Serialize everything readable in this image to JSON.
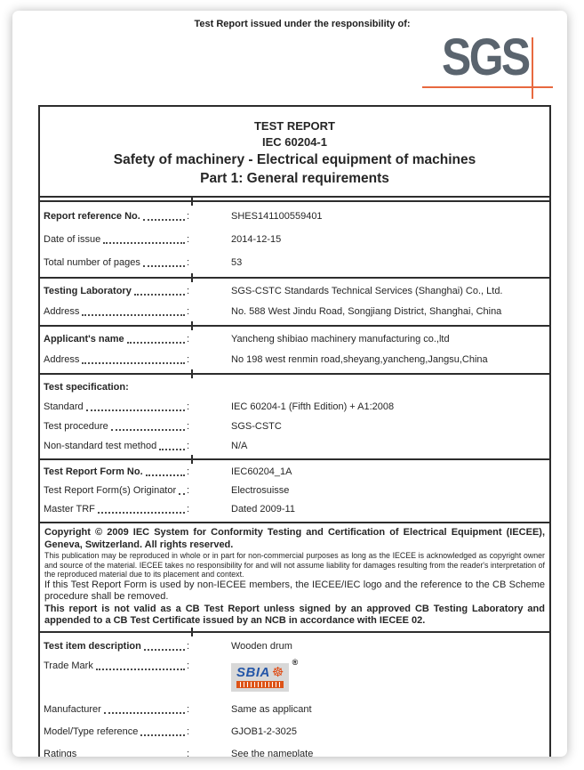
{
  "colors": {
    "accent_orange": "#e8693f",
    "sgs_gray": "#5a646e",
    "border": "#2d2d2d",
    "trademark_blue": "#2456a8",
    "trademark_orange": "#dd5317",
    "trademark_bg": "#d8d8d8"
  },
  "header": {
    "issued_text": "Test Report issued under the responsibility of:",
    "logo_text": "SGS"
  },
  "title_block": {
    "line1": "TEST REPORT",
    "line2": "IEC 60204-1",
    "line3": "Safety of machinery - Electrical equipment of machines",
    "line4": "Part 1: General requirements"
  },
  "table": {
    "colon": ":",
    "sections": [
      {
        "rows": [
          {
            "label": "Report reference No.",
            "bold": true,
            "value": "SHES141100559401"
          },
          {
            "label": "Date of issue",
            "bold": false,
            "value": "2014-12-15"
          },
          {
            "label": "Total number of pages",
            "bold": false,
            "value": "53"
          }
        ]
      },
      {
        "rows": [
          {
            "label": "Testing Laboratory",
            "bold": true,
            "value": "SGS-CSTC Standards Technical Services (Shanghai) Co., Ltd."
          },
          {
            "label": "Address",
            "bold": false,
            "value": "No. 588 West Jindu Road, Songjiang District, Shanghai, China"
          }
        ]
      },
      {
        "rows": [
          {
            "label": "Applicant's name",
            "bold": true,
            "value": "Yancheng shibiao machinery manufacturing co.,ltd"
          },
          {
            "label": "Address",
            "bold": false,
            "value": "No 198 west renmin road,sheyang,yancheng,Jangsu,China"
          }
        ]
      },
      {
        "rows": [
          {
            "label": "Test specification:",
            "bold": true,
            "no_leader": true,
            "value": ""
          },
          {
            "label": "Standard",
            "bold": false,
            "value": "IEC 60204-1 (Fifth Edition) + A1:2008"
          },
          {
            "label": "Test procedure",
            "bold": false,
            "value": "SGS-CSTC"
          },
          {
            "label": "Non-standard test method",
            "bold": false,
            "value": "N/A"
          }
        ]
      },
      {
        "rows": [
          {
            "label": "Test Report Form No.",
            "bold": true,
            "value": "IEC60204_1A"
          },
          {
            "label": "Test Report Form(s) Originator",
            "bold": false,
            "value": "Electrosuisse"
          },
          {
            "label": "Master TRF",
            "bold": false,
            "value": "Dated 2009-11"
          }
        ]
      },
      {
        "type": "copyright",
        "paragraphs": [
          {
            "style": "bold",
            "text": "Copyright © 2009 IEC System for Conformity Testing and Certification of Electrical Equipment (IECEE), Geneva, Switzerland. All rights reserved."
          },
          {
            "style": "small",
            "text": "This publication may be reproduced in whole or in part for non-commercial purposes as long as the IECEE is acknowledged as copyright owner and source of the material. IECEE takes no responsibility for and will not assume liability for damages resulting from the reader's interpretation of the reproduced material due to its placement and context."
          },
          {
            "style": "normal",
            "text": "If this Test Report Form is used by non-IECEE members, the IECEE/IEC logo and the reference to the CB Scheme procedure shall be removed."
          },
          {
            "style": "bold",
            "text": "This report is not valid as a CB Test Report unless signed by an approved CB Testing Laboratory and appended to a CB Test Certificate issued by an NCB in accordance with IECEE 02."
          }
        ]
      },
      {
        "rows": [
          {
            "label": "Test item description",
            "bold": true,
            "value": "Wooden drum"
          },
          {
            "label": "Trade Mark",
            "bold": false,
            "type": "logo",
            "value": ""
          },
          {
            "label": "Manufacturer",
            "bold": false,
            "value": "Same as applicant"
          },
          {
            "label": "Model/Type reference",
            "bold": false,
            "value": "GJOB1-2-3025"
          },
          {
            "label": "Ratings",
            "bold": false,
            "value": "See the nameplate"
          }
        ]
      }
    ]
  },
  "trademark": {
    "name": "SBIA",
    "registered": "®",
    "wheel_icon": "☸"
  }
}
